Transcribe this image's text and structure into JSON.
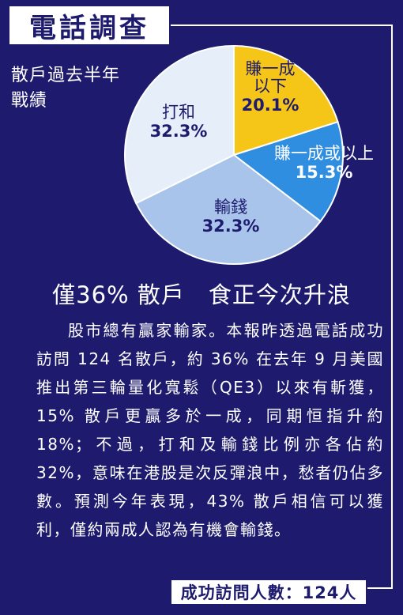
{
  "header": {
    "title": "電話調查"
  },
  "chart_data": {
    "type": "pie",
    "title": "散戶過去半年戰績",
    "title_lines": [
      "散戶過去半年",
      "戰績"
    ],
    "slices": [
      {
        "label": "賺一成以下",
        "label_lines": [
          "賺一成",
          "以下"
        ],
        "value": 20.1,
        "value_text": "20.1%",
        "color": "#f5c518",
        "text_color": "#1e1b6e"
      },
      {
        "label": "賺一成或以上",
        "label_lines": [
          "賺一成或以上"
        ],
        "value": 15.3,
        "value_text": "15.3%",
        "color": "#2f8ee0",
        "text_color": "#ffffff"
      },
      {
        "label": "輸錢",
        "label_lines": [
          "輸錢"
        ],
        "value": 32.3,
        "value_text": "32.3%",
        "color": "#a9c4ea",
        "text_color": "#1e1b6e"
      },
      {
        "label": "打和",
        "label_lines": [
          "打和"
        ],
        "value": 32.3,
        "value_text": "32.3%",
        "color": "#e6eef9",
        "text_color": "#1e1b6e"
      }
    ]
  },
  "article": {
    "headline": "僅36% 散戶　食正今次升浪",
    "body": "股市總有贏家輸家。本報昨透過電話成功訪問 124 名散戶，約 36% 在去年 9 月美國推出第三輪量化寬鬆（QE3）以來有斬獲，15% 散戶更贏多於一成，同期恒指升約 18%；不過，打和及輸錢比例亦各佔約 32%，意味在港股是次反彈浪中，愁者仍佔多數。預測今年表現，43% 散戶相信可以獲利，僅約兩成人認為有機會輸錢。"
  },
  "footer": {
    "sample_text": "成功訪問人數：124人"
  }
}
